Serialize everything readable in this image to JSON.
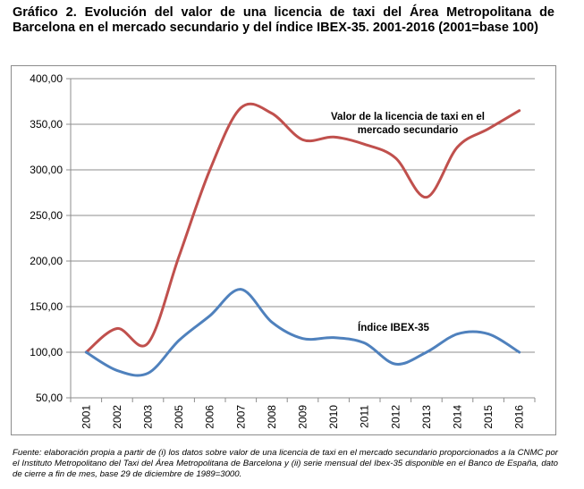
{
  "title": "Gráfico 2. Evolución del valor de una licencia de taxi del Área Metropolitana de Barcelona en el mercado secundario y del índice IBEX-35. 2001-2016 (2001=base 100)",
  "source": "Fuente: elaboración propia a partir de (i) los datos sobre valor de una licencia de taxi en el mercado secundario proporcionados a la CNMC por el Instituto Metropolitano del Taxi del Área Metropolitana de Barcelona y (ii) serie mensual del Ibex-35 disponible en el Banco de España, dato de cierre a fin de mes, base 29 de diciembre de 1989=3000.",
  "chart_data": {
    "type": "line",
    "categories": [
      "2001",
      "2002",
      "2003",
      "2005",
      "2006",
      "2007",
      "2008",
      "2009",
      "2010",
      "2011",
      "2012",
      "2013",
      "2014",
      "2015",
      "2016"
    ],
    "ylim": [
      50,
      400
    ],
    "yticks": [
      "50,00",
      "100,00",
      "150,00",
      "200,00",
      "250,00",
      "300,00",
      "350,00",
      "400,00"
    ],
    "grid": true,
    "xlabel": "",
    "ylabel": "",
    "series": [
      {
        "name": "Valor de la licencia de taxi en el mercado secundario",
        "label_lines": [
          "Valor de la licencia de taxi en el",
          "mercado secundario"
        ],
        "color": "#c0504d",
        "values": [
          100,
          126,
          110,
          205,
          300,
          368,
          362,
          333,
          336,
          328,
          313,
          270,
          325,
          345,
          365
        ]
      },
      {
        "name": "Índice IBEX-35",
        "label_lines": [
          "Índice IBEX-35"
        ],
        "color": "#4f81bd",
        "values": [
          100,
          80,
          77,
          113,
          140,
          169,
          133,
          115,
          116,
          110,
          87,
          100,
          120,
          120,
          100
        ]
      }
    ]
  }
}
